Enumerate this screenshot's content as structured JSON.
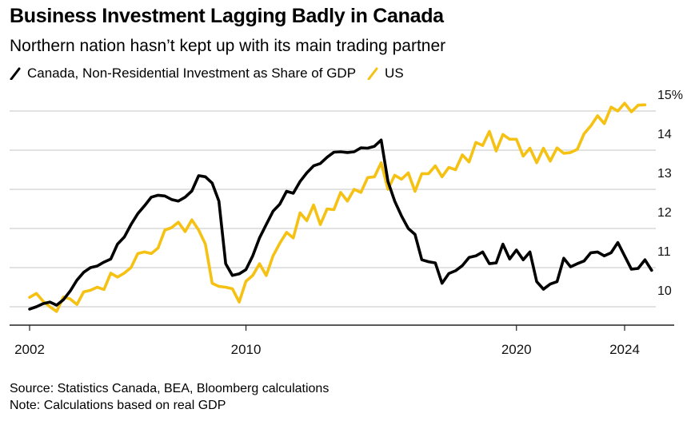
{
  "chart_data": {
    "type": "line",
    "title": "Business Investment Lagging Badly in Canada",
    "subtitle": "Northern nation hasn’t kept up with its main trading partner",
    "xlabel": "",
    "ylabel": "",
    "x_start": "2002 Q1",
    "x_frequency": "quarterly",
    "xlim": [
      2002,
      2025.1
    ],
    "ylim": [
      9.5,
      15.5
    ],
    "x_ticks": [
      2002,
      2010,
      2020,
      2024
    ],
    "x_tick_labels": [
      "2002",
      "2010",
      "2020",
      "2024"
    ],
    "y_ticks": [
      10,
      11,
      12,
      13,
      14,
      15
    ],
    "y_tick_labels": [
      "10",
      "11",
      "12",
      "13",
      "14",
      "15%"
    ],
    "y_axis_side": "right",
    "grid": true,
    "legend_position": "top-left",
    "series": [
      {
        "name": "Canada, Non-Residential Investment as Share of GDP",
        "color": "#000000",
        "values": [
          9.94,
          10.0,
          10.08,
          10.12,
          10.04,
          10.18,
          10.4,
          10.68,
          10.88,
          11.0,
          11.04,
          11.14,
          11.22,
          11.6,
          11.78,
          12.1,
          12.38,
          12.58,
          12.8,
          12.85,
          12.83,
          12.74,
          12.7,
          12.8,
          12.96,
          13.35,
          13.32,
          13.16,
          12.7,
          11.1,
          10.8,
          10.84,
          10.95,
          11.3,
          11.76,
          12.1,
          12.44,
          12.62,
          12.95,
          12.9,
          13.2,
          13.42,
          13.6,
          13.66,
          13.82,
          13.95,
          13.96,
          13.94,
          13.96,
          14.06,
          14.05,
          14.1,
          14.26,
          13.2,
          12.7,
          12.32,
          12.0,
          11.85,
          11.2,
          11.15,
          11.12,
          10.6,
          10.85,
          10.92,
          11.05,
          11.26,
          11.3,
          11.4,
          11.1,
          11.12,
          11.6,
          11.22,
          11.45,
          11.2,
          11.4,
          10.64,
          10.45,
          10.58,
          10.64,
          11.24,
          11.02,
          11.1,
          11.17,
          11.38,
          11.4,
          11.3,
          11.38,
          11.64,
          11.3,
          10.96,
          10.98,
          11.2,
          10.93
        ]
      },
      {
        "name": "US",
        "color": "#F5C113",
        "values": [
          10.24,
          10.34,
          10.14,
          10.0,
          9.88,
          10.25,
          10.2,
          10.06,
          10.38,
          10.42,
          10.5,
          10.44,
          10.86,
          10.76,
          10.86,
          11.0,
          11.36,
          11.4,
          11.36,
          11.5,
          11.96,
          12.02,
          12.16,
          11.92,
          12.22,
          11.96,
          11.6,
          10.6,
          10.52,
          10.5,
          10.46,
          10.12,
          10.65,
          10.8,
          11.1,
          10.8,
          11.3,
          11.62,
          11.9,
          11.76,
          12.4,
          12.2,
          12.6,
          12.1,
          12.5,
          12.48,
          12.92,
          12.7,
          13.0,
          12.92,
          13.3,
          13.32,
          13.68,
          13.0,
          13.36,
          13.26,
          13.42,
          12.95,
          13.4,
          13.4,
          13.6,
          13.32,
          13.56,
          13.5,
          13.88,
          13.7,
          14.2,
          14.12,
          14.48,
          13.98,
          14.4,
          14.28,
          14.28,
          13.85,
          14.05,
          13.68,
          14.05,
          13.72,
          14.06,
          13.92,
          13.94,
          14.02,
          14.42,
          14.62,
          14.88,
          14.68,
          15.1,
          15.0,
          15.2,
          14.98,
          15.15,
          15.16
        ]
      }
    ]
  },
  "header": {
    "title": "Business Investment Lagging Badly in Canada",
    "subtitle": "Northern nation hasn’t kept up with its main trading partner"
  },
  "legend": {
    "items": [
      {
        "label": "Canada, Non-Residential Investment as Share of GDP",
        "color": "#000000"
      },
      {
        "label": "US",
        "color": "#F5C113"
      }
    ]
  },
  "footer": {
    "source": "Source: Statistics Canada, BEA, Bloomberg calculations",
    "note": "Note: Calculations based on real GDP"
  }
}
